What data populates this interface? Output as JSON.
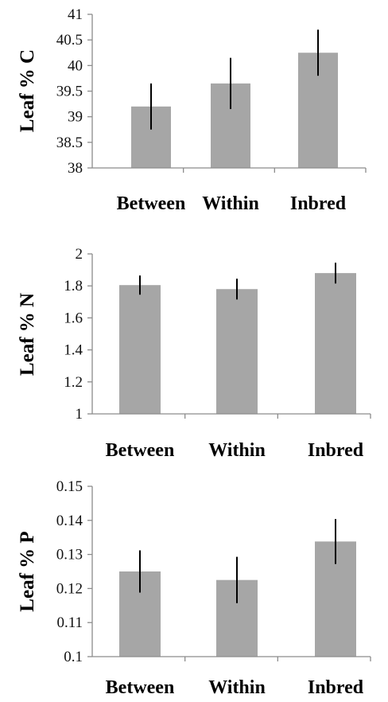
{
  "chart_data": [
    {
      "type": "bar",
      "ylabel": "Leaf % C",
      "categories": [
        "Between",
        "Within",
        "Inbred"
      ],
      "values": [
        39.2,
        39.65,
        40.25
      ],
      "errors": [
        0.45,
        0.5,
        0.45
      ],
      "ylim": [
        38,
        41
      ],
      "yticks": [
        "38",
        "38.5",
        "39",
        "39.5",
        "40",
        "40.5",
        "41"
      ],
      "ytick_values": [
        38,
        38.5,
        39,
        39.5,
        40,
        40.5,
        41
      ],
      "color": "#a6a6a6",
      "grid": false
    },
    {
      "type": "bar",
      "ylabel": "Leaf % N",
      "categories": [
        "Between",
        "Within",
        "Inbred"
      ],
      "values": [
        1.805,
        1.78,
        1.88
      ],
      "errors": [
        0.06,
        0.065,
        0.065
      ],
      "ylim": [
        1,
        2
      ],
      "yticks": [
        "1",
        "1.2",
        "1.4",
        "1.6",
        "1.8",
        "2"
      ],
      "ytick_values": [
        1,
        1.2,
        1.4,
        1.6,
        1.8,
        2
      ],
      "color": "#a6a6a6",
      "grid": false
    },
    {
      "type": "bar",
      "ylabel": "Leaf % P",
      "categories": [
        "Between",
        "Within",
        "Inbred"
      ],
      "values": [
        0.125,
        0.1225,
        0.1338
      ],
      "errors": [
        0.0062,
        0.0068,
        0.0066
      ],
      "ylim": [
        0.1,
        0.15
      ],
      "yticks": [
        "0.1",
        "0.11",
        "0.12",
        "0.13",
        "0.14",
        "0.15"
      ],
      "ytick_values": [
        0.1,
        0.11,
        0.12,
        0.13,
        0.14,
        0.15
      ],
      "color": "#a6a6a6",
      "grid": false
    }
  ]
}
